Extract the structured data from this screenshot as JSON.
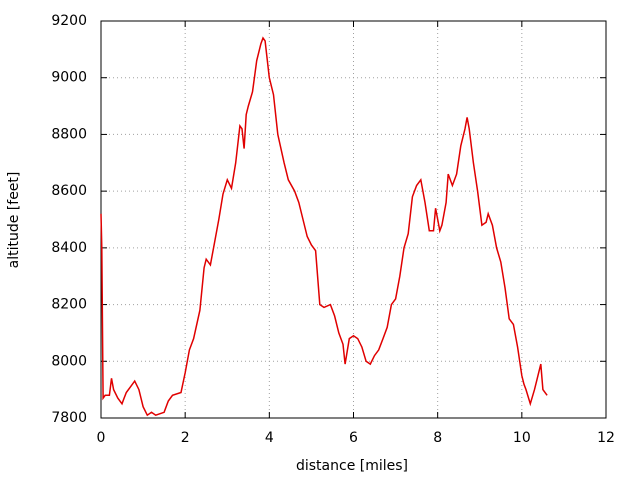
{
  "chart_data": {
    "type": "line",
    "x_label": "distance [miles]",
    "y_label": "altitude [feet]",
    "xlim": [
      0,
      12
    ],
    "xticks": [
      0,
      2,
      4,
      6,
      8,
      10,
      12
    ],
    "ylim": [
      7800,
      9200
    ],
    "yticks": [
      7800,
      8000,
      8200,
      8400,
      8600,
      8800,
      9000,
      9200
    ],
    "grid": true,
    "series": [
      {
        "color": "#e00000",
        "x": [
          0,
          0.02,
          0.05,
          0.1,
          0.2,
          0.25,
          0.3,
          0.4,
          0.5,
          0.55,
          0.6,
          0.7,
          0.8,
          0.9,
          1.0,
          1.1,
          1.2,
          1.3,
          1.5,
          1.6,
          1.7,
          1.9,
          2.0,
          2.1,
          2.2,
          2.35,
          2.45,
          2.5,
          2.6,
          2.7,
          2.8,
          2.9,
          3.0,
          3.1,
          3.2,
          3.3,
          3.35,
          3.4,
          3.45,
          3.5,
          3.6,
          3.7,
          3.8,
          3.85,
          3.9,
          4.0,
          4.1,
          4.2,
          4.35,
          4.45,
          4.6,
          4.7,
          4.8,
          4.9,
          5.0,
          5.1,
          5.2,
          5.3,
          5.45,
          5.55,
          5.65,
          5.75,
          5.8,
          5.9,
          6.0,
          6.1,
          6.2,
          6.3,
          6.4,
          6.5,
          6.6,
          6.7,
          6.8,
          6.9,
          7.0,
          7.1,
          7.2,
          7.3,
          7.4,
          7.5,
          7.6,
          7.7,
          7.8,
          7.9,
          7.95,
          8.0,
          8.05,
          8.1,
          8.2,
          8.25,
          8.35,
          8.45,
          8.55,
          8.65,
          8.7,
          8.75,
          8.85,
          8.95,
          9.05,
          9.15,
          9.2,
          9.3,
          9.4,
          9.5,
          9.6,
          9.7,
          9.8,
          9.9,
          10.0,
          10.05,
          10.1,
          10.2,
          10.3,
          10.4,
          10.45,
          10.5,
          10.6
        ],
        "values": [
          8520,
          8400,
          7870,
          7880,
          7880,
          7940,
          7900,
          7870,
          7850,
          7870,
          7890,
          7910,
          7930,
          7900,
          7840,
          7810,
          7820,
          7810,
          7820,
          7860,
          7880,
          7890,
          7960,
          8040,
          8080,
          8180,
          8330,
          8360,
          8340,
          8420,
          8500,
          8590,
          8640,
          8610,
          8700,
          8830,
          8820,
          8750,
          8870,
          8900,
          8950,
          9060,
          9120,
          9140,
          9130,
          9000,
          8940,
          8800,
          8700,
          8640,
          8600,
          8560,
          8500,
          8440,
          8410,
          8390,
          8200,
          8190,
          8200,
          8160,
          8100,
          8060,
          7990,
          8080,
          8090,
          8080,
          8050,
          8000,
          7990,
          8020,
          8040,
          8080,
          8120,
          8200,
          8220,
          8300,
          8400,
          8450,
          8580,
          8620,
          8640,
          8560,
          8460,
          8460,
          8540,
          8500,
          8460,
          8480,
          8560,
          8660,
          8620,
          8660,
          8760,
          8820,
          8860,
          8820,
          8700,
          8600,
          8480,
          8490,
          8520,
          8480,
          8400,
          8350,
          8260,
          8150,
          8130,
          8050,
          7950,
          7920,
          7900,
          7850,
          7900,
          7960,
          7990,
          7900,
          7880
        ]
      }
    ]
  }
}
